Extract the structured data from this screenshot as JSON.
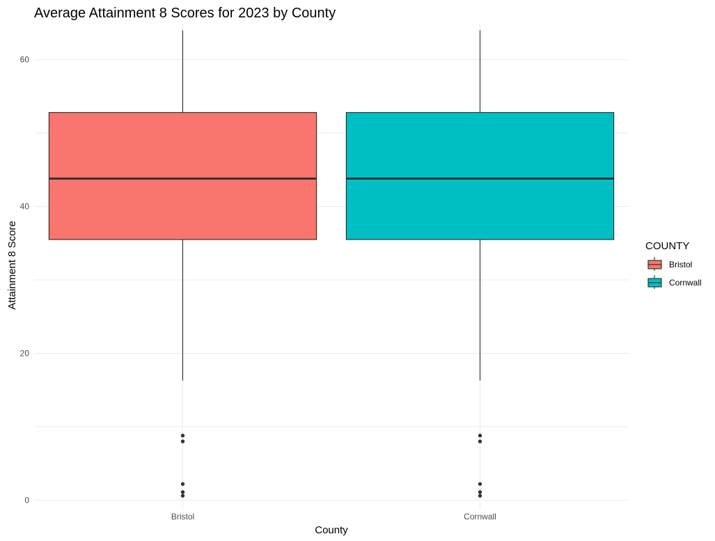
{
  "chart_data": {
    "type": "boxplot",
    "title": "Average Attainment 8 Scores for 2023 by County",
    "xlabel": "County",
    "ylabel": "Attainment 8 Score",
    "categories": [
      "Bristol",
      "Cornwall"
    ],
    "ylim": [
      -1.2,
      65
    ],
    "yticks": [
      0,
      20,
      40,
      60
    ],
    "grid": true,
    "legend": {
      "title": "COUNTY",
      "position": "right",
      "entries": [
        {
          "label": "Bristol",
          "color": "#F8766D"
        },
        {
          "label": "Cornwall",
          "color": "#00BFC4"
        }
      ]
    },
    "series": [
      {
        "category": "Bristol",
        "color": "#F8766D",
        "whisker_low": 16.3,
        "q1": 35.5,
        "median": 43.8,
        "q3": 52.8,
        "whisker_high": 64.0,
        "outliers": [
          8.8,
          8.0,
          2.2,
          1.1,
          0.6
        ]
      },
      {
        "category": "Cornwall",
        "color": "#00BFC4",
        "whisker_low": 16.3,
        "q1": 35.5,
        "median": 43.8,
        "q3": 52.8,
        "whisker_high": 64.0,
        "outliers": [
          8.8,
          8.0,
          2.2,
          1.1,
          0.6
        ]
      }
    ]
  }
}
